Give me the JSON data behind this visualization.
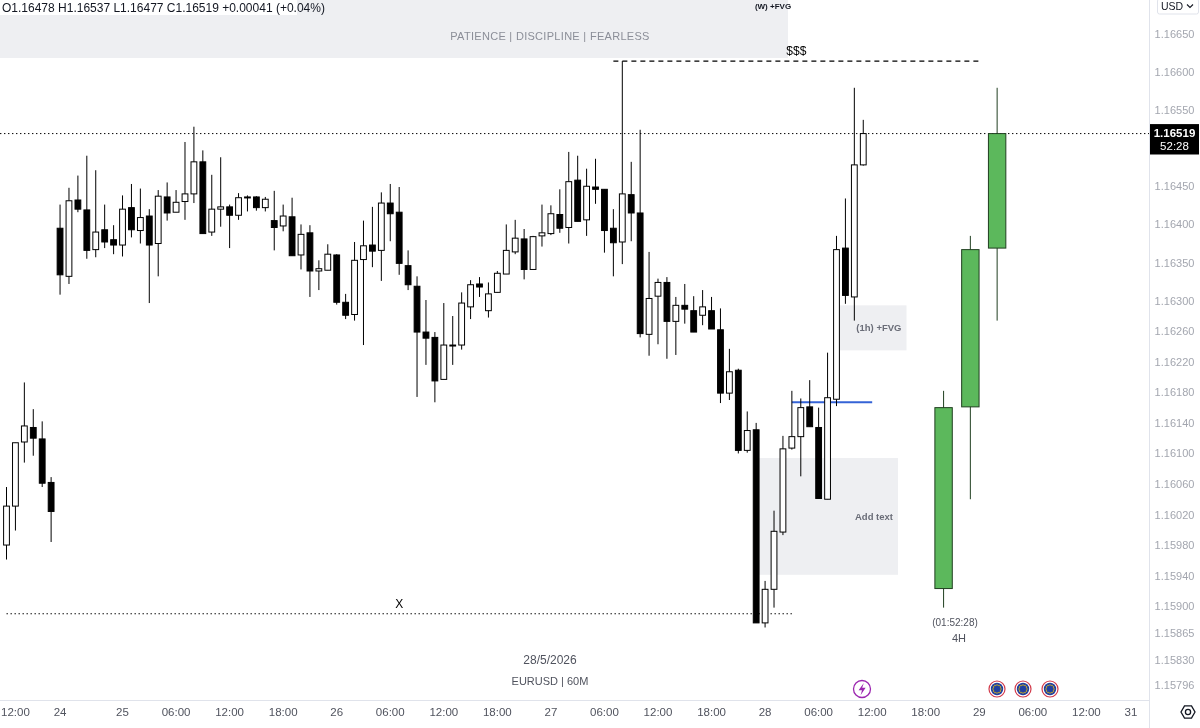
{
  "chart_data": {
    "type": "candlestick",
    "subtitle": "PATIENCE | DISCIPLINE | FEARLESS",
    "ylabel": "USD",
    "categories": [
      null,
      "12:00",
      null,
      null,
      null,
      null,
      "24",
      null,
      null,
      null,
      null,
      null,
      null,
      "25",
      null,
      null,
      null,
      null,
      null,
      "06:00",
      null,
      null,
      null,
      null,
      null,
      "12:00",
      null,
      null,
      null,
      null,
      null,
      "18:00",
      null,
      null,
      null,
      null,
      null,
      "26",
      null,
      null,
      null,
      null,
      null,
      "06:00",
      null,
      null,
      null,
      null,
      null,
      "12:00",
      null,
      null,
      null,
      null,
      null,
      "18:00",
      null,
      null,
      null,
      null,
      null,
      "27",
      null,
      null,
      null,
      null,
      null,
      "06:00",
      null,
      null,
      null,
      null,
      null,
      "12:00",
      null,
      null,
      null,
      null,
      null,
      "18:00",
      null,
      null,
      null,
      null,
      null,
      "28",
      null,
      null,
      null,
      null,
      null,
      "06:00",
      null,
      null,
      null,
      null,
      null,
      "12:00",
      null,
      null,
      null,
      null,
      null,
      "18:00",
      null,
      null,
      null,
      null,
      null,
      "29",
      null,
      null,
      null,
      null,
      null,
      "06:00",
      null,
      null,
      null,
      null,
      null,
      "12:00",
      null,
      null,
      null,
      null,
      "31"
    ],
    "series": [
      {
        "color": "#000000",
        "colors": [
          "#ffffff",
          "#ffffff",
          "#ffffff",
          "#000000",
          "#000000",
          "#000000",
          "#000000",
          "#ffffff",
          "#000000",
          "#000000",
          "#ffffff",
          "#000000",
          "#000000",
          "#ffffff",
          "#000000",
          "#ffffff",
          "#000000",
          "#ffffff",
          "#000000",
          "#ffffff",
          "#ffffff",
          "#ffffff",
          "#000000",
          "#ffffff",
          "#ffffff",
          "#000000",
          "#ffffff",
          "#ffffff",
          "#000000",
          "#ffffff",
          "#000000",
          "#ffffff",
          "#000000",
          "#ffffff",
          "#000000",
          "#ffffff",
          "#ffffff",
          "#000000",
          "#000000",
          "#ffffff",
          "#ffffff",
          "#000000",
          "#ffffff",
          "#000000",
          "#000000",
          "#000000",
          "#000000",
          "#000000",
          "#000000",
          "#ffffff",
          "#ffffff",
          "#ffffff",
          "#ffffff",
          "#000000",
          "#ffffff",
          "#ffffff",
          "#ffffff",
          "#ffffff",
          "#000000",
          "#ffffff",
          "#ffffff",
          "#ffffff",
          "#000000",
          "#ffffff",
          "#000000",
          "#ffffff",
          "#000000",
          "#000000",
          "#000000",
          "#ffffff",
          "#000000",
          "#000000",
          "#ffffff",
          "#ffffff",
          "#000000",
          "#ffffff",
          "#000000",
          "#000000",
          "#ffffff",
          "#000000",
          "#000000",
          "#ffffff",
          "#000000",
          "#ffffff",
          "#000000",
          "#ffffff",
          "#ffffff",
          "#ffffff",
          "#ffffff",
          "#ffffff",
          "#000000",
          "#000000",
          "#ffffff",
          "#ffffff",
          "#000000",
          "#ffffff",
          "#ffffff",
          null,
          null,
          null,
          null,
          null,
          null,
          null,
          null,
          null,
          null,
          null,
          null,
          null,
          null,
          null,
          null,
          null,
          null,
          null,
          null,
          null,
          null,
          null,
          null,
          null,
          null,
          null,
          null,
          null,
          null
        ],
        "ohlc": [
          [
            1.1598,
            1.16056,
            1.15961,
            1.16031
          ],
          [
            1.16031,
            1.16114,
            1.15999,
            1.16114
          ],
          [
            1.16115,
            1.16193,
            1.16088,
            1.16136
          ],
          [
            1.16134,
            1.16158,
            1.16097,
            1.1612
          ],
          [
            1.16119,
            1.16142,
            1.16056,
            1.16061
          ],
          [
            1.16062,
            1.16069,
            1.15984,
            1.16024
          ],
          [
            1.16395,
            1.16426,
            1.16308,
            1.16334
          ],
          [
            1.16332,
            1.16448,
            1.16322,
            1.16431
          ],
          [
            1.16432,
            1.16464,
            1.16416,
            1.1642
          ],
          [
            1.16419,
            1.1649,
            1.16355,
            1.16366
          ],
          [
            1.16367,
            1.16471,
            1.16357,
            1.1639
          ],
          [
            1.16393,
            1.16426,
            1.16369,
            1.16377
          ],
          [
            1.1638,
            1.16399,
            1.16361,
            1.16373
          ],
          [
            1.16373,
            1.16438,
            1.16358,
            1.1642
          ],
          [
            1.16422,
            1.16453,
            1.16383,
            1.16393
          ],
          [
            1.16392,
            1.16447,
            1.16375,
            1.16409
          ],
          [
            1.16411,
            1.1642,
            1.16297,
            1.16373
          ],
          [
            1.16375,
            1.16445,
            1.16332,
            1.16437
          ],
          [
            1.16436,
            1.16455,
            1.16405,
            1.16415
          ],
          [
            1.16416,
            1.16445,
            1.16416,
            1.16429
          ],
          [
            1.1643,
            1.16508,
            1.16406,
            1.1644
          ],
          [
            1.1644,
            1.16528,
            1.16428,
            1.16482
          ],
          [
            1.16482,
            1.16497,
            1.16388,
            1.16388
          ],
          [
            1.1639,
            1.16465,
            1.16385,
            1.1642
          ],
          [
            1.1642,
            1.16488,
            1.16397,
            1.16423
          ],
          [
            1.16423,
            1.16426,
            1.16369,
            1.16412
          ],
          [
            1.16412,
            1.16441,
            1.16406,
            1.16435
          ],
          [
            1.16435,
            1.16438,
            1.16417,
            1.16436
          ],
          [
            1.16436,
            1.16437,
            1.16418,
            1.16422
          ],
          [
            1.16422,
            1.16436,
            1.16417,
            1.16433
          ],
          [
            1.16405,
            1.16444,
            1.16366,
            1.16396
          ],
          [
            1.16398,
            1.16426,
            1.16391,
            1.16411
          ],
          [
            1.1641,
            1.16435,
            1.16359,
            1.16359
          ],
          [
            1.1636,
            1.164,
            1.16341,
            1.16387
          ],
          [
            1.16389,
            1.16399,
            1.16305,
            1.16339
          ],
          [
            1.16339,
            1.16353,
            1.16314,
            1.16342
          ],
          [
            1.1634,
            1.16374,
            1.1634,
            1.16361
          ],
          [
            1.1636,
            1.16361,
            1.16295,
            1.16298
          ],
          [
            1.16298,
            1.16309,
            1.16276,
            1.16281
          ],
          [
            1.16282,
            1.16377,
            1.16274,
            1.16353
          ],
          [
            1.16354,
            1.16405,
            1.16242,
            1.16372
          ],
          [
            1.16373,
            1.16423,
            1.16344,
            1.16365
          ],
          [
            1.16366,
            1.16442,
            1.16326,
            1.16428
          ],
          [
            1.16428,
            1.16453,
            1.16378,
            1.16414
          ],
          [
            1.16416,
            1.16449,
            1.16334,
            1.16349
          ],
          [
            1.16346,
            1.16366,
            1.16314,
            1.16321
          ],
          [
            1.16319,
            1.16332,
            1.16174,
            1.16259
          ],
          [
            1.16259,
            1.16301,
            1.16216,
            1.16251
          ],
          [
            1.16252,
            1.16259,
            1.16167,
            1.16195
          ],
          [
            1.16197,
            1.16297,
            1.16197,
            1.16242
          ],
          [
            1.16242,
            1.1628,
            1.16216,
            1.16242
          ],
          [
            1.16242,
            1.16311,
            1.16236,
            1.16297
          ],
          [
            1.16292,
            1.16327,
            1.16276,
            1.16321
          ],
          [
            1.16322,
            1.16331,
            1.16305,
            1.16318
          ],
          [
            1.16287,
            1.16324,
            1.16278,
            1.16309
          ],
          [
            1.16311,
            1.16339,
            1.16311,
            1.16336
          ],
          [
            1.16335,
            1.164,
            1.16335,
            1.16366
          ],
          [
            1.16364,
            1.16406,
            1.16361,
            1.16382
          ],
          [
            1.16381,
            1.16394,
            1.16328,
            1.16341
          ],
          [
            1.16341,
            1.16385,
            1.16341,
            1.16384
          ],
          [
            1.16385,
            1.16426,
            1.16371,
            1.16389
          ],
          [
            1.16388,
            1.16425,
            1.16386,
            1.16414
          ],
          [
            1.16413,
            1.16446,
            1.16389,
            1.16395
          ],
          [
            1.16396,
            1.16495,
            1.16375,
            1.16456
          ],
          [
            1.16458,
            1.1649,
            1.16404,
            1.16404
          ],
          [
            1.16406,
            1.16473,
            1.16385,
            1.1645
          ],
          [
            1.16449,
            1.16486,
            1.16427,
            1.16446
          ],
          [
            1.16446,
            1.16446,
            1.16363,
            1.16392
          ],
          [
            1.16395,
            1.1642,
            1.16332,
            1.16376
          ],
          [
            1.16377,
            1.16614,
            1.16348,
            1.1644
          ],
          [
            1.16439,
            1.16482,
            1.16378,
            1.16415
          ],
          [
            1.16415,
            1.16524,
            1.16252,
            1.16257
          ],
          [
            1.16256,
            1.16364,
            1.16228,
            1.16303
          ],
          [
            1.16306,
            1.16329,
            1.16243,
            1.16324
          ],
          [
            1.16324,
            1.16331,
            1.16224,
            1.16273
          ],
          [
            1.16273,
            1.16305,
            1.16229,
            1.16294
          ],
          [
            1.16294,
            1.16322,
            1.1627,
            1.16289
          ],
          [
            1.16287,
            1.16306,
            1.16259,
            1.16259
          ],
          [
            1.16281,
            1.16314,
            1.16268,
            1.16292
          ],
          [
            1.16287,
            1.16305,
            1.16263,
            1.16263
          ],
          [
            1.16262,
            1.1629,
            1.16166,
            1.16179
          ],
          [
            1.16179,
            1.16237,
            1.1617,
            1.16207
          ],
          [
            1.16209,
            1.16211,
            1.161,
            1.16104
          ],
          [
            1.16104,
            1.16155,
            1.16101,
            1.1613
          ],
          [
            1.16131,
            1.1614,
            1.15878,
            1.15878
          ],
          [
            1.15878,
            1.15933,
            1.15872,
            1.15922
          ],
          [
            1.15922,
            1.16025,
            1.15898,
            1.15998
          ],
          [
            1.15997,
            1.16123,
            1.15993,
            1.16106
          ],
          [
            1.16107,
            1.16182,
            1.16105,
            1.16122
          ],
          [
            1.16122,
            1.16172,
            1.1607,
            1.1616
          ],
          [
            1.16161,
            1.16196,
            1.16135,
            1.16135
          ],
          [
            1.16134,
            1.1616,
            1.16041,
            1.16041
          ],
          [
            1.1604,
            1.16232,
            1.1604,
            1.16173
          ],
          [
            1.16171,
            1.16385,
            1.16162,
            1.16367
          ],
          [
            1.16369,
            1.16434,
            1.16296,
            1.16307
          ],
          [
            1.16305,
            1.16579,
            1.16274,
            1.16478
          ],
          [
            1.16478,
            1.16537,
            1.16477,
            1.16519
          ],
          null,
          null,
          null,
          null,
          null,
          null,
          null,
          null,
          null,
          null,
          null,
          null,
          null,
          null,
          null,
          null,
          null,
          null,
          null,
          null,
          null,
          null,
          null,
          null,
          null,
          null,
          null,
          null,
          null,
          null
        ]
      },
      {
        "type": "candlestick",
        "color": "#5cb85c",
        "ohlc": [
          null,
          null,
          null,
          null,
          null,
          null,
          null,
          null,
          null,
          null,
          null,
          null,
          null,
          null,
          null,
          null,
          null,
          null,
          null,
          null,
          null,
          null,
          null,
          null,
          null,
          null,
          null,
          null,
          null,
          null,
          null,
          null,
          null,
          null,
          null,
          null,
          null,
          null,
          null,
          null,
          null,
          null,
          null,
          null,
          null,
          null,
          null,
          null,
          null,
          null,
          null,
          null,
          null,
          null,
          null,
          null,
          null,
          null,
          null,
          null,
          null,
          null,
          null,
          null,
          null,
          null,
          null,
          null,
          null,
          null,
          null,
          null,
          null,
          null,
          null,
          null,
          null,
          null,
          null,
          null,
          null,
          null,
          null,
          null,
          null,
          null,
          null,
          null,
          null,
          null,
          null,
          null,
          null,
          null,
          null,
          null,
          null,
          null,
          null,
          null,
          null,
          null,
          null,
          null,
          null,
          [
            1.15923,
            1.16182,
            1.15898,
            1.1616
          ],
          null,
          null,
          [
            1.16161,
            1.16385,
            1.1604,
            1.16367
          ],
          null,
          null,
          [
            1.16369,
            1.16579,
            1.16274,
            1.16519
          ],
          null,
          null,
          null,
          null,
          null,
          null,
          null,
          null,
          null,
          null,
          null,
          null,
          null,
          null,
          null
        ]
      },
      {
        "type": "line",
        "name": "$$$",
        "color": "#000000",
        "line_style": "dashed",
        "values": [
          null,
          null,
          null,
          null,
          null,
          null,
          null,
          null,
          null,
          null,
          null,
          null,
          null,
          null,
          null,
          null,
          null,
          null,
          null,
          null,
          null,
          null,
          null,
          null,
          null,
          null,
          null,
          null,
          null,
          null,
          null,
          null,
          null,
          null,
          null,
          null,
          null,
          null,
          null,
          null,
          null,
          null,
          null,
          null,
          null,
          null,
          null,
          null,
          null,
          null,
          null,
          null,
          null,
          null,
          null,
          null,
          null,
          null,
          null,
          null,
          null,
          null,
          null,
          null,
          null,
          null,
          null,
          null,
          1.16614,
          1.16614,
          1.16614,
          1.16614,
          1.16614,
          1.16614,
          1.16614,
          1.16614,
          1.16614,
          1.16614,
          1.16614,
          1.16614,
          1.16614,
          1.16614,
          1.16614,
          1.16614,
          1.16614,
          1.16614,
          1.16614,
          1.16614,
          1.16614,
          1.16614,
          1.16614,
          1.16614,
          1.16614,
          1.16614,
          1.16614,
          1.16614,
          1.16614,
          1.16614,
          1.16614,
          1.16614,
          1.16614,
          1.16614,
          1.16614,
          1.16614,
          1.16614,
          1.16614,
          1.16614,
          1.16614,
          1.16614,
          1.16614,
          null,
          null,
          null,
          null,
          null,
          null,
          null,
          null,
          null,
          null,
          null,
          null,
          null,
          null,
          null,
          null,
          null
        ]
      },
      {
        "type": "line",
        "name": "X",
        "color": "#000000",
        "line_style": "dotted",
        "values": [
          1.1589,
          1.1589,
          1.1589,
          1.1589,
          1.1589,
          1.1589,
          1.1589,
          1.1589,
          1.1589,
          1.1589,
          1.1589,
          1.1589,
          1.1589,
          1.1589,
          1.1589,
          1.1589,
          1.1589,
          1.1589,
          1.1589,
          1.1589,
          1.1589,
          1.1589,
          1.1589,
          1.1589,
          1.1589,
          1.1589,
          1.1589,
          1.1589,
          1.1589,
          1.1589,
          1.1589,
          1.1589,
          1.1589,
          1.1589,
          1.1589,
          1.1589,
          1.1589,
          1.1589,
          1.1589,
          1.1589,
          1.1589,
          1.1589,
          1.1589,
          1.1589,
          1.1589,
          1.1589,
          1.1589,
          1.1589,
          1.1589,
          1.1589,
          1.1589,
          1.1589,
          1.1589,
          1.1589,
          1.1589,
          1.1589,
          1.1589,
          1.1589,
          1.1589,
          1.1589,
          1.1589,
          1.1589,
          1.1589,
          1.1589,
          1.1589,
          1.1589,
          1.1589,
          1.1589,
          1.1589,
          1.1589,
          1.1589,
          1.1589,
          1.1589,
          1.1589,
          1.1589,
          1.1589,
          1.1589,
          1.1589,
          1.1589,
          1.1589,
          1.1589,
          1.1589,
          1.1589,
          1.1589,
          1.1589,
          1.1589,
          1.1589,
          1.1589,
          1.1589,
          null,
          null,
          null,
          null,
          null,
          null,
          null,
          null,
          null,
          null,
          null,
          null,
          null,
          null,
          null,
          null,
          null,
          null,
          null,
          null,
          null,
          null,
          null,
          null,
          null,
          null,
          null,
          null,
          null,
          null,
          null,
          null,
          null,
          null,
          null,
          null,
          null,
          null
        ]
      },
      {
        "type": "line",
        "color": "#3563d6",
        "line_style": "solid",
        "values": [
          null,
          null,
          null,
          null,
          null,
          null,
          null,
          null,
          null,
          null,
          null,
          null,
          null,
          null,
          null,
          null,
          null,
          null,
          null,
          null,
          null,
          null,
          null,
          null,
          null,
          null,
          null,
          null,
          null,
          null,
          null,
          null,
          null,
          null,
          null,
          null,
          null,
          null,
          null,
          null,
          null,
          null,
          null,
          null,
          null,
          null,
          null,
          null,
          null,
          null,
          null,
          null,
          null,
          null,
          null,
          null,
          null,
          null,
          null,
          null,
          null,
          null,
          null,
          null,
          null,
          null,
          null,
          null,
          null,
          null,
          null,
          null,
          null,
          null,
          null,
          null,
          null,
          null,
          null,
          null,
          null,
          null,
          null,
          null,
          null,
          null,
          null,
          null,
          1.16167,
          1.16167,
          1.16167,
          1.16167,
          1.16167,
          1.16167,
          1.16167,
          1.16167,
          1.16167,
          1.16167,
          null,
          null,
          null,
          null,
          null,
          null,
          null,
          null,
          null,
          null,
          null,
          null,
          null,
          null,
          null,
          null,
          null,
          null,
          null,
          null,
          null,
          null,
          null,
          null,
          null,
          null,
          null,
          null,
          null
        ]
      }
    ],
    "bands": [
      {
        "axis": "y",
        "from": 1.16235,
        "to": 1.16294,
        "label": "(1h) +FVG",
        "color": "#eeeff2"
      },
      {
        "axis": "y",
        "from": 1.15941,
        "to": 1.16094,
        "label": "Add text",
        "color": "#eeeff2"
      }
    ],
    "ref_lines": [
      {
        "axis": "y",
        "value": 1.16519,
        "label": "1.16519",
        "color": "#000000",
        "line_style": "dotted"
      }
    ],
    "annotations": [
      "O1.16478 H1.16537 L1.16477 C1.16519 +0.00041 (+0.04%)",
      "(W) +FVG",
      "52:28",
      "28/5/2026",
      "EURUSD | 60M",
      "(01:52:28)",
      "4H"
    ],
    "ylim": [
      1.15777,
      1.16694
    ],
    "yticks": [
      {
        "value": 1.1665,
        "label": "1.16650"
      },
      {
        "value": 1.166,
        "label": "1.16600"
      },
      {
        "value": 1.1655,
        "label": "1.16550"
      },
      {
        "value": 1.1645,
        "label": "1.16450"
      },
      {
        "value": 1.164,
        "label": "1.16400"
      },
      {
        "value": 1.1635,
        "label": "1.16350"
      },
      {
        "value": 1.163,
        "label": "1.16300"
      },
      {
        "value": 1.1626,
        "label": "1.16260"
      },
      {
        "value": 1.1622,
        "label": "1.16220"
      },
      {
        "value": 1.1618,
        "label": "1.16180"
      },
      {
        "value": 1.1614,
        "label": "1.16140"
      },
      {
        "value": 1.161,
        "label": "1.16100"
      },
      {
        "value": 1.1606,
        "label": "1.16060"
      },
      {
        "value": 1.1602,
        "label": "1.16020"
      },
      {
        "value": 1.1598,
        "label": "1.15980"
      },
      {
        "value": 1.1594,
        "label": "1.15940"
      },
      {
        "value": 1.159,
        "label": "1.15900"
      },
      1.15865,
      {
        "value": 1.1583,
        "label": "1.15830"
      },
      1.15796
    ]
  }
}
